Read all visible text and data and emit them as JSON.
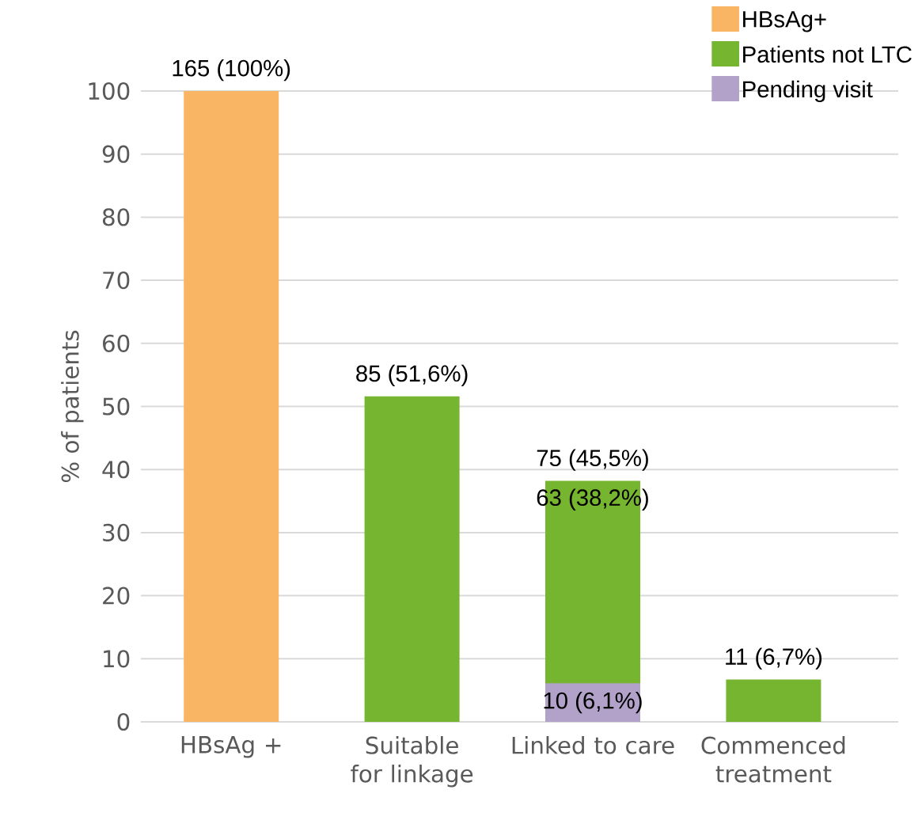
{
  "chart_data": {
    "type": "bar",
    "categories": [
      "HBsAg +",
      "Suitable for linkage",
      "Linked to care",
      "Commenced treatment"
    ],
    "series": [
      {
        "name": "HBsAg+",
        "color": "#f9b563",
        "values": [
          100,
          null,
          null,
          null
        ],
        "value_labels": [
          "165 (100%)",
          null,
          null,
          null
        ]
      },
      {
        "name": "Patients not LTC",
        "color": "#76b52f",
        "values": [
          null,
          51.6,
          38.2,
          6.7
        ],
        "value_labels": [
          null,
          "85 (51,6%)",
          "63 (38,2%)",
          "11 (6,7%)"
        ]
      },
      {
        "name": "Pending visit",
        "color": "#b2a2c9",
        "values": [
          null,
          null,
          6.1,
          null
        ],
        "value_labels": [
          null,
          null,
          "10 (6,1%)",
          null
        ]
      }
    ],
    "annotations": [
      {
        "text": "75 (45,5%)",
        "x": "Linked to care",
        "y": 38.2
      }
    ],
    "ylabel": "% of patients",
    "ylim": [
      0,
      100
    ],
    "yticks": [
      0,
      10,
      20,
      30,
      40,
      50,
      60,
      70,
      80,
      90,
      100
    ],
    "grid": "y",
    "legend": "top right"
  }
}
